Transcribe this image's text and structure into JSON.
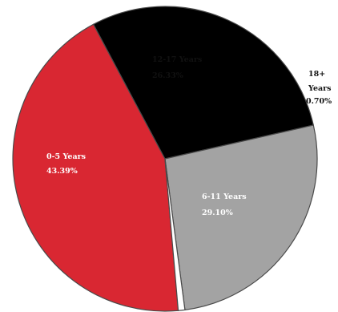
{
  "chart_data": {
    "type": "pie",
    "slices": [
      {
        "label": "0-5 Years",
        "value": 43.39,
        "value_label": "43.39%",
        "color": "#d92732",
        "text_color": "#ffffff"
      },
      {
        "label": "6-11 Years",
        "value": 29.1,
        "value_label": "29.10%",
        "color": "#000000",
        "text_color": "#ffffff"
      },
      {
        "label": "12-17 Years",
        "value": 26.33,
        "value_label": "26.33%",
        "color": "#a3a3a3",
        "text_color": "#111111"
      },
      {
        "label": "18+ Years",
        "value": 0.7,
        "value_label": "0.70%",
        "color": "#ffffff",
        "text_color": "#111111"
      }
    ]
  }
}
